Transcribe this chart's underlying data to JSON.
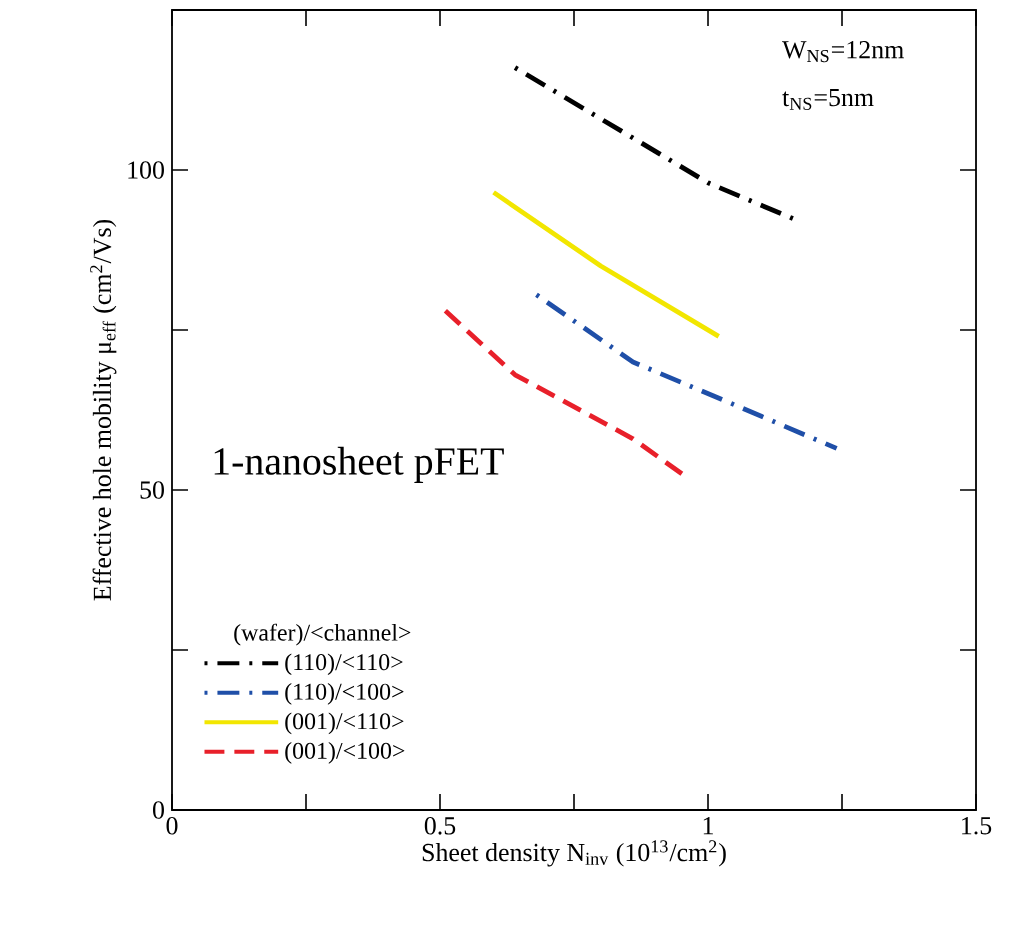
{
  "chart_data": {
    "type": "line",
    "xlabel": "Sheet density N$_{inv}$ (10$^{13}$/cm$^{2}$)",
    "ylabel": "Effective hole mobility μ$_{eff}$ (cm$^{2}$/Vs)",
    "legend_title": "(wafer)/<channel>",
    "annotations": [
      "W$_{NS}$=12nm",
      "t$_{NS}$=5nm",
      "1-nanosheet pFET"
    ],
    "xlim": [
      0,
      1.5
    ],
    "ylim": [
      0,
      125
    ],
    "xticks": [
      0,
      {
        "value": 0.25,
        "label": null
      },
      0.5,
      {
        "value": 0.75,
        "label": null
      },
      1,
      {
        "value": 1.25,
        "label": null
      },
      1.5
    ],
    "yticks": [
      0,
      {
        "value": 25,
        "label": null
      },
      50,
      {
        "value": 75,
        "label": null
      },
      100
    ],
    "legend": "bottom left",
    "marker": "none",
    "series": [
      {
        "name": "(110)/<110>",
        "color": "#000000",
        "line_style": "dashdot",
        "x": [
          0.64,
          1.0,
          1.17
        ],
        "values": [
          116,
          98,
          92
        ]
      },
      {
        "name": "(110)/<100>",
        "color": "#1f4fa8",
        "line_style": "dashdot",
        "x": [
          0.68,
          0.86,
          1.03,
          1.24
        ],
        "values": [
          80.5,
          70,
          64,
          56.5
        ]
      },
      {
        "name": "(001)/<110>",
        "color": "#f2e600",
        "line_style": "solid",
        "x": [
          0.6,
          0.8,
          1.02
        ],
        "values": [
          96.5,
          85,
          74
        ]
      },
      {
        "name": "(001)/<100>",
        "color": "#e8202a",
        "line_style": "dashed",
        "x": [
          0.51,
          0.64,
          0.86,
          0.96
        ],
        "values": [
          78,
          68,
          58,
          52
        ]
      }
    ]
  }
}
